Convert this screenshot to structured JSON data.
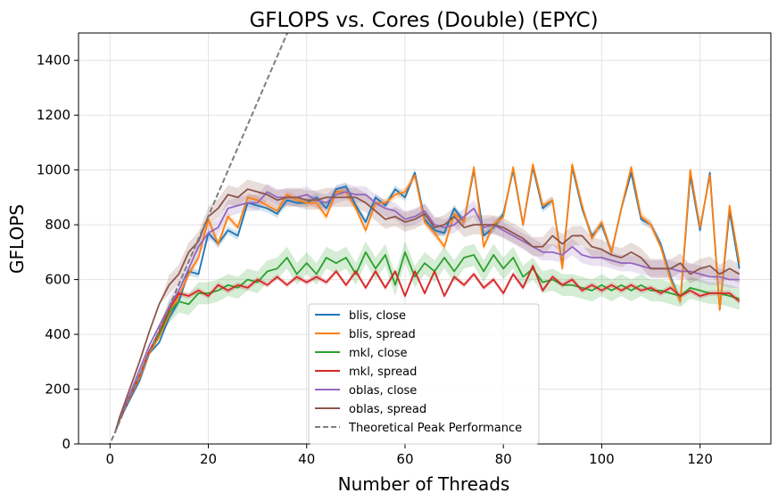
{
  "chart_data": {
    "type": "line",
    "title": "GFLOPS vs. Cores (Double) (EPYC)",
    "xlabel": "Number of Threads",
    "ylabel": "GFLOPS",
    "xlim": [
      -6.4,
      134.4
    ],
    "ylim": [
      0,
      1500
    ],
    "xticks": [
      0,
      20,
      40,
      60,
      80,
      100,
      120
    ],
    "yticks": [
      0,
      200,
      400,
      600,
      800,
      1000,
      1200,
      1400
    ],
    "grid": true,
    "legend_position": "lower-center",
    "x": [
      1,
      2,
      4,
      6,
      8,
      10,
      12,
      14,
      16,
      18,
      20,
      22,
      24,
      26,
      28,
      30,
      32,
      34,
      36,
      38,
      40,
      42,
      44,
      46,
      48,
      50,
      52,
      54,
      56,
      58,
      60,
      62,
      64,
      66,
      68,
      70,
      72,
      74,
      76,
      78,
      80,
      82,
      84,
      86,
      88,
      90,
      92,
      94,
      96,
      98,
      100,
      102,
      104,
      106,
      108,
      110,
      112,
      114,
      116,
      118,
      120,
      122,
      124,
      126,
      128
    ],
    "series": [
      {
        "name": "blis, close",
        "color": "#1f77b4",
        "values": [
          40,
          90,
          160,
          230,
          330,
          370,
          460,
          520,
          630,
          620,
          770,
          730,
          780,
          760,
          880,
          870,
          860,
          840,
          890,
          880,
          880,
          900,
          860,
          930,
          940,
          870,
          810,
          900,
          870,
          930,
          900,
          990,
          820,
          780,
          770,
          860,
          810,
          1000,
          760,
          790,
          840,
          1000,
          800,
          1010,
          860,
          890,
          650,
          1010,
          860,
          760,
          800,
          700,
          860,
          990,
          820,
          800,
          730,
          610,
          520,
          980,
          780,
          990,
          490,
          850,
          640
        ],
        "band": 15
      },
      {
        "name": "blis, spread",
        "color": "#ff7f0e",
        "values": [
          40,
          95,
          165,
          240,
          330,
          390,
          470,
          540,
          620,
          680,
          820,
          730,
          830,
          790,
          900,
          890,
          870,
          850,
          910,
          890,
          880,
          880,
          830,
          920,
          920,
          860,
          780,
          880,
          880,
          910,
          920,
          980,
          810,
          770,
          720,
          840,
          810,
          1010,
          720,
          800,
          830,
          1010,
          800,
          1020,
          870,
          890,
          640,
          1020,
          870,
          750,
          810,
          700,
          860,
          1010,
          830,
          800,
          720,
          600,
          520,
          1000,
          790,
          980,
          490,
          870,
          660
        ],
        "band": 15
      },
      {
        "name": "mkl, close",
        "color": "#2ca02c",
        "values": [
          40,
          90,
          170,
          250,
          340,
          400,
          480,
          520,
          510,
          550,
          550,
          560,
          580,
          570,
          600,
          590,
          630,
          640,
          680,
          620,
          660,
          620,
          680,
          660,
          680,
          620,
          700,
          640,
          690,
          580,
          700,
          610,
          660,
          630,
          680,
          630,
          680,
          690,
          630,
          690,
          640,
          680,
          610,
          640,
          590,
          600,
          580,
          580,
          570,
          560,
          580,
          560,
          580,
          560,
          580,
          560,
          560,
          550,
          540,
          570,
          560,
          550,
          550,
          540,
          530
        ],
        "band": 40
      },
      {
        "name": "mkl, spread",
        "color": "#d62728",
        "values": [
          40,
          90,
          170,
          250,
          340,
          410,
          490,
          550,
          540,
          560,
          540,
          580,
          560,
          580,
          570,
          600,
          580,
          610,
          580,
          610,
          590,
          610,
          590,
          630,
          580,
          630,
          570,
          630,
          570,
          630,
          540,
          630,
          550,
          630,
          540,
          610,
          580,
          620,
          570,
          600,
          550,
          620,
          570,
          650,
          560,
          610,
          580,
          600,
          560,
          580,
          560,
          580,
          560,
          580,
          560,
          570,
          550,
          570,
          540,
          560,
          540,
          550,
          550,
          550,
          520
        ],
        "band": 10
      },
      {
        "name": "oblas, close",
        "color": "#9467bd",
        "values": [
          40,
          95,
          180,
          270,
          360,
          430,
          500,
          560,
          640,
          720,
          770,
          790,
          860,
          870,
          880,
          880,
          920,
          900,
          900,
          900,
          910,
          890,
          880,
          910,
          920,
          910,
          910,
          880,
          860,
          850,
          820,
          830,
          850,
          800,
          790,
          800,
          830,
          860,
          790,
          800,
          780,
          760,
          740,
          720,
          700,
          700,
          690,
          720,
          690,
          680,
          680,
          670,
          660,
          660,
          650,
          640,
          640,
          640,
          630,
          630,
          620,
          610,
          610,
          600,
          600
        ],
        "band": 30
      },
      {
        "name": "oblas, spread",
        "color": "#8c564b",
        "values": [
          40,
          100,
          200,
          300,
          410,
          510,
          580,
          620,
          700,
          740,
          830,
          860,
          910,
          900,
          930,
          920,
          910,
          890,
          900,
          900,
          890,
          890,
          900,
          900,
          900,
          900,
          880,
          850,
          820,
          830,
          810,
          820,
          840,
          790,
          800,
          830,
          790,
          800,
          800,
          800,
          790,
          770,
          750,
          720,
          720,
          760,
          730,
          760,
          760,
          720,
          710,
          690,
          680,
          700,
          680,
          640,
          640,
          640,
          660,
          620,
          640,
          650,
          620,
          640,
          620
        ],
        "band": 35
      }
    ],
    "reference_line": {
      "name": "Theoretical Peak Performance",
      "color": "#7f7f7f",
      "style": "dashed",
      "slope": 41.6
    }
  }
}
